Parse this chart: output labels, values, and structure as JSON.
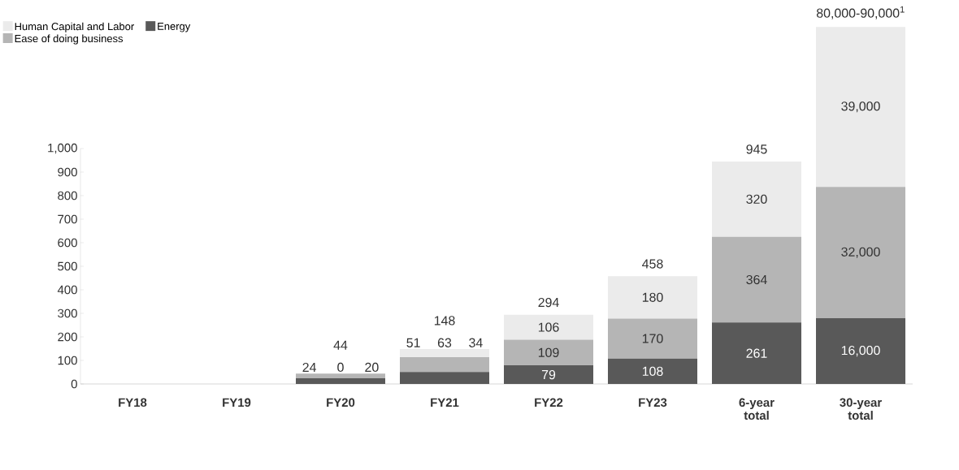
{
  "chart_data": [
    {
      "type": "bar",
      "stacked": true,
      "legend": "top left",
      "data_labels": true,
      "categories": [
        "FY18",
        "FY19",
        "FY20",
        "FY21",
        "FY22",
        "FY23",
        "6-year total"
      ],
      "ylim": [
        0,
        1000
      ],
      "yticks": [
        0,
        100,
        200,
        300,
        400,
        500,
        600,
        700,
        800,
        900,
        {
          "value": 1000,
          "label": "1,000"
        }
      ],
      "totals": [
        null,
        null,
        "44",
        "148",
        "294",
        "458",
        "945"
      ],
      "series": [
        {
          "name": "Energy",
          "color": "#595959",
          "values": [
            null,
            null,
            24,
            51,
            79,
            108,
            261
          ]
        },
        {
          "name": "Ease of doing business",
          "color": "#b5b5b5",
          "values": [
            null,
            null,
            20,
            63,
            109,
            170,
            364
          ]
        },
        {
          "name": "Human Capital and Labor",
          "color": "#ebebeb",
          "values": [
            null,
            null,
            0,
            34,
            106,
            180,
            320
          ]
        }
      ]
    },
    {
      "type": "bar",
      "stacked": true,
      "tick_labels": "x",
      "categories": [
        "30-year total"
      ],
      "totals": [
        "80,000-90,000$^{1}$"
      ],
      "series": [
        {
          "color": "#595959",
          "values": [
            16000
          ],
          "value_labels": [
            "16,000"
          ]
        },
        {
          "color": "#b5b5b5",
          "values": [
            32000
          ],
          "value_labels": [
            "32,000"
          ]
        },
        {
          "color": "#ebebeb",
          "values": [
            39000
          ],
          "value_labels": [
            "39,000"
          ]
        }
      ]
    }
  ]
}
